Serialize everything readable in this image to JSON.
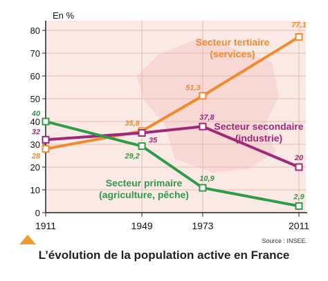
{
  "chart_data": {
    "type": "line",
    "ylabel": "En %",
    "ylim": [
      0,
      80
    ],
    "yticks": [
      0,
      10,
      20,
      30,
      40,
      50,
      60,
      70,
      80
    ],
    "x": [
      1911,
      1949,
      1973,
      2011
    ],
    "x_tick_labels": [
      "1911",
      "1949",
      "1973",
      "2011"
    ],
    "series": [
      {
        "name": "Secteur tertiaire",
        "name_sub": "(services)",
        "color": "#f08a2c",
        "values": [
          28,
          35.8,
          51.3,
          77.1
        ],
        "labels": [
          "28",
          "35,8",
          "51,3",
          "77,1"
        ]
      },
      {
        "name": "Secteur secondaire",
        "name_sub": "(industrie)",
        "color": "#a0287a",
        "values": [
          32,
          35,
          37.8,
          20
        ],
        "labels": [
          "32",
          "35",
          "37,8",
          "20"
        ]
      },
      {
        "name": "Secteur primaire",
        "name_sub": "(agriculture, pêche)",
        "color": "#2f9a47",
        "values": [
          40,
          29.2,
          10.9,
          2.9
        ],
        "labels": [
          "40",
          "29,2",
          "10,9",
          "2,9"
        ]
      }
    ],
    "grid": true,
    "title": "L’évolution de la population active en France",
    "source": "Source : INSEE."
  }
}
